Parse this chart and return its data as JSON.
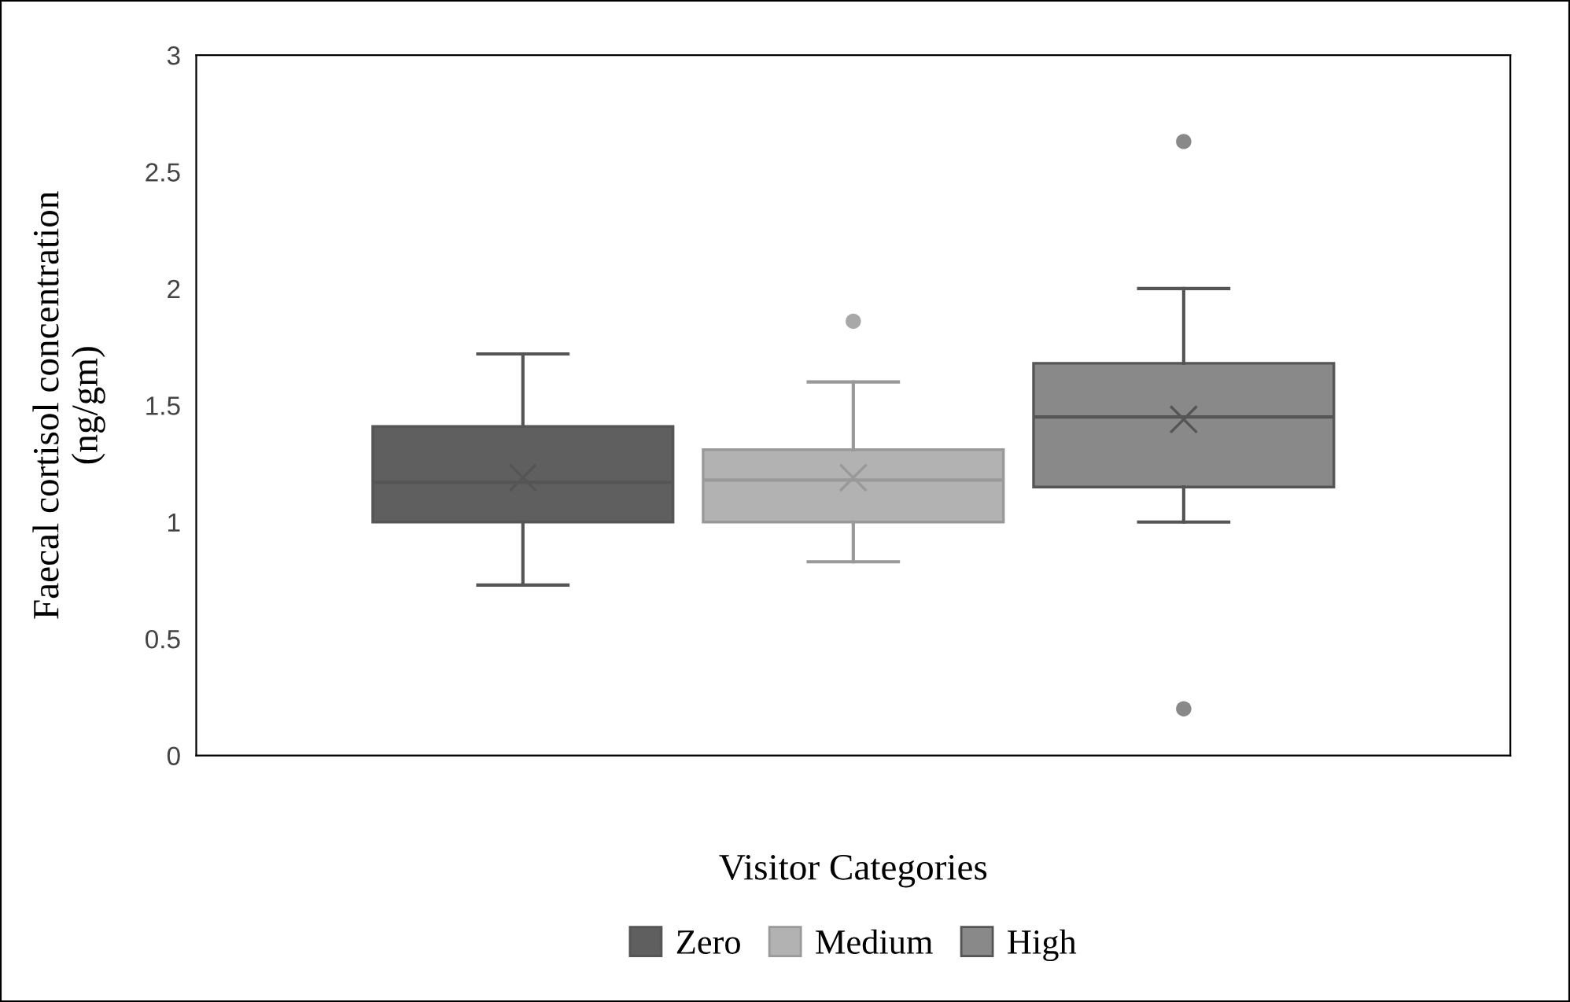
{
  "chart_data": {
    "type": "box",
    "xlabel": "Visitor Categories",
    "ylabel": "Faecal cortisol concentration\n(ng/gm)",
    "categories": [
      null
    ],
    "series": [
      {
        "name": "Zero",
        "color": "#5f5f5f",
        "boxes": [
          {
            "low": 0.73,
            "q1": 1.0,
            "median": 1.17,
            "q3": 1.41,
            "high": 1.72,
            "mean": 1.19
          }
        ]
      },
      {
        "name": "Medium",
        "color": "#b2b2b2",
        "boxes": [
          {
            "low": 0.83,
            "q1": 1.0,
            "median": 1.18,
            "q3": 1.31,
            "high": 1.6,
            "mean": 1.19,
            "outliers": [
              1.86
            ]
          }
        ]
      },
      {
        "name": "High",
        "color": "#898989",
        "boxes": [
          {
            "low": 1.0,
            "q1": 1.15,
            "median": 1.45,
            "q3": 1.68,
            "high": 2.0,
            "mean": 1.44,
            "outliers": [
              2.63,
              0.2
            ]
          }
        ]
      }
    ],
    "ylim": [
      0,
      3
    ],
    "yticks": [
      0,
      0.5,
      1,
      1.5,
      2,
      2.5,
      3
    ],
    "tick_labels": "y",
    "grid": false,
    "legend": "bottom"
  }
}
